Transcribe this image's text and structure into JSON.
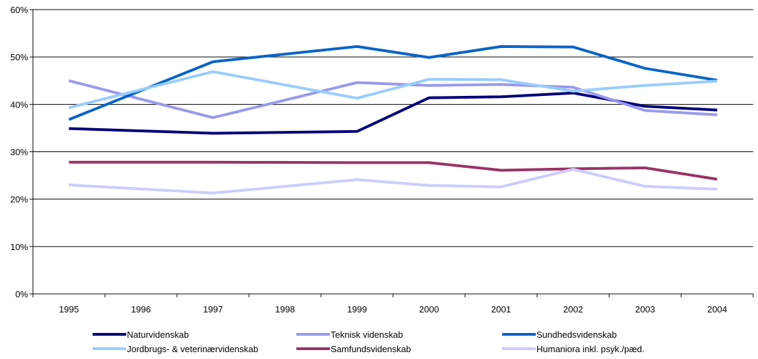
{
  "chart_data": {
    "type": "line",
    "categories": [
      "1995",
      "1996",
      "1997",
      "1998",
      "1999",
      "2000",
      "2001",
      "2002",
      "2003",
      "2004"
    ],
    "y_ticks": [
      "0%",
      "10%",
      "20%",
      "30%",
      "40%",
      "50%",
      "60%"
    ],
    "ylim": [
      0,
      60
    ],
    "y_unit": "%",
    "grid": "horizontal",
    "legend_position": "bottom",
    "series": [
      {
        "name": "Naturvidenskab",
        "color": "#00007a",
        "values": [
          34.9,
          null,
          33.9,
          null,
          34.3,
          41.4,
          41.6,
          42.4,
          39.6,
          38.8
        ]
      },
      {
        "name": "Teknisk videnskab",
        "color": "#9999ee",
        "values": [
          45.0,
          null,
          37.2,
          null,
          44.6,
          44.0,
          44.2,
          43.6,
          38.7,
          37.8
        ]
      },
      {
        "name": "Sundhedsvidenskab",
        "color": "#0a64c8",
        "values": [
          36.8,
          null,
          49.0,
          null,
          52.2,
          49.9,
          52.2,
          52.1,
          47.6,
          45.1
        ]
      },
      {
        "name": "Jordbrugs- & veterinærvidenskab",
        "color": "#99ccff",
        "values": [
          39.3,
          null,
          46.9,
          null,
          41.3,
          45.3,
          45.2,
          42.8,
          44.0,
          44.9
        ]
      },
      {
        "name": "Samfundsvidenskab",
        "color": "#993366",
        "values": [
          27.8,
          null,
          27.8,
          null,
          27.7,
          27.7,
          26.1,
          26.4,
          26.6,
          24.2
        ]
      },
      {
        "name": "Humaniora inkl. psyk./pæd.",
        "color": "#ccccff",
        "values": [
          23.0,
          null,
          21.3,
          null,
          24.1,
          22.9,
          22.6,
          26.3,
          22.7,
          22.1
        ]
      }
    ]
  }
}
